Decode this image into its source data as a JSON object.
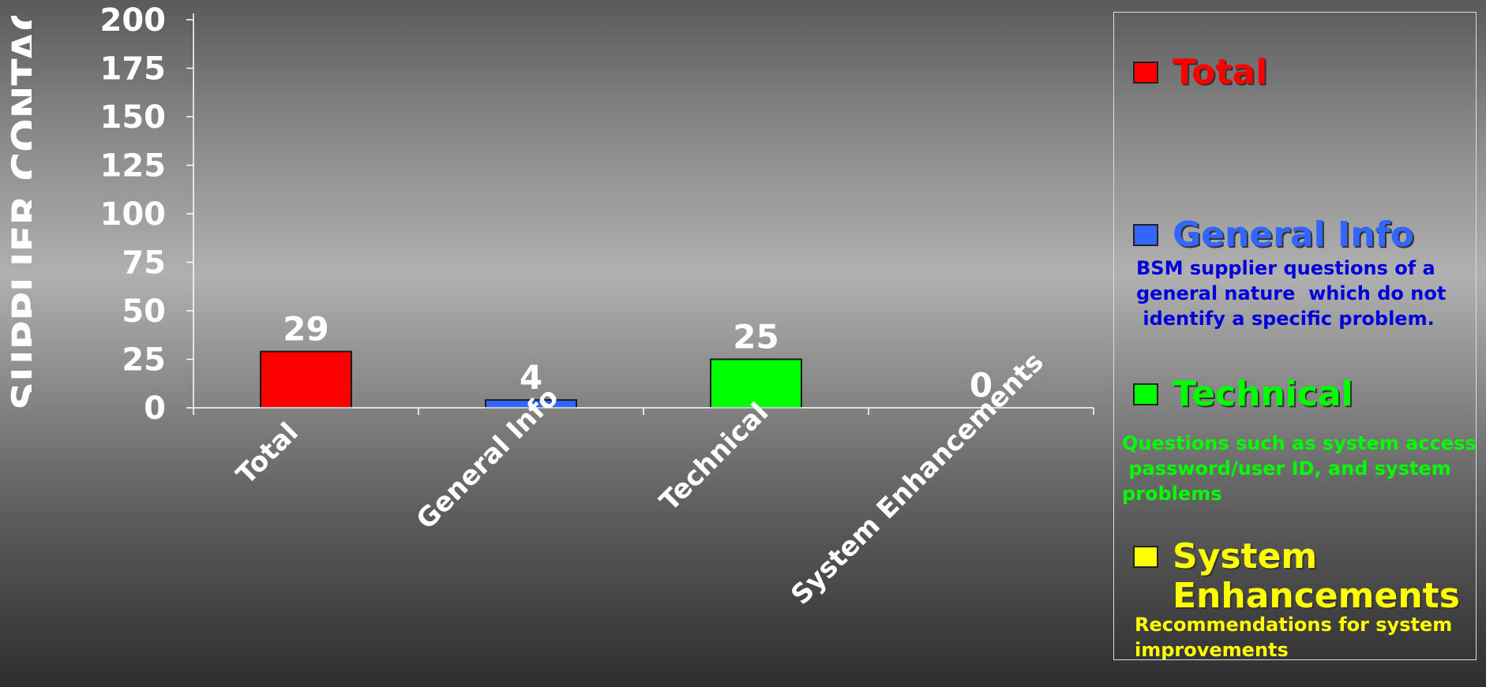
{
  "chart_data": {
    "type": "bar",
    "ylabel": "SUPPLIER CONTACTS",
    "ylim": [
      0,
      200
    ],
    "yticks": [
      "0",
      "25",
      "50",
      "75",
      "100",
      "125",
      "150",
      "175",
      "200"
    ],
    "categories": [
      "Total",
      "General Info",
      "Technical",
      "System Enhancements"
    ],
    "values": [
      29,
      4,
      25,
      0
    ],
    "value_labels": [
      "29",
      "4",
      "25",
      "0"
    ],
    "colors": [
      "#ff0000",
      "#3366ff",
      "#00ff00",
      "#ffff00"
    ],
    "grid": false,
    "legend_position": "right"
  },
  "legend": {
    "items": [
      {
        "name": "Total",
        "color": "#ff0000",
        "description": []
      },
      {
        "name": "General Info",
        "color": "#3366ff",
        "description_color": "#0000dd",
        "description": [
          "BSM supplier questions of a",
          "general nature  which do not",
          " identify a specific problem."
        ]
      },
      {
        "name": "Technical",
        "color": "#00ff00",
        "description_color": "#00ff00",
        "description": [
          "Questions such as system access,",
          " password/user ID, and system",
          "problems"
        ]
      },
      {
        "name_lines": [
          "System",
          "Enhancements"
        ],
        "color": "#ffff00",
        "description_color": "#ffff00",
        "description": [
          "Recommendations for system",
          "improvements"
        ]
      }
    ]
  }
}
